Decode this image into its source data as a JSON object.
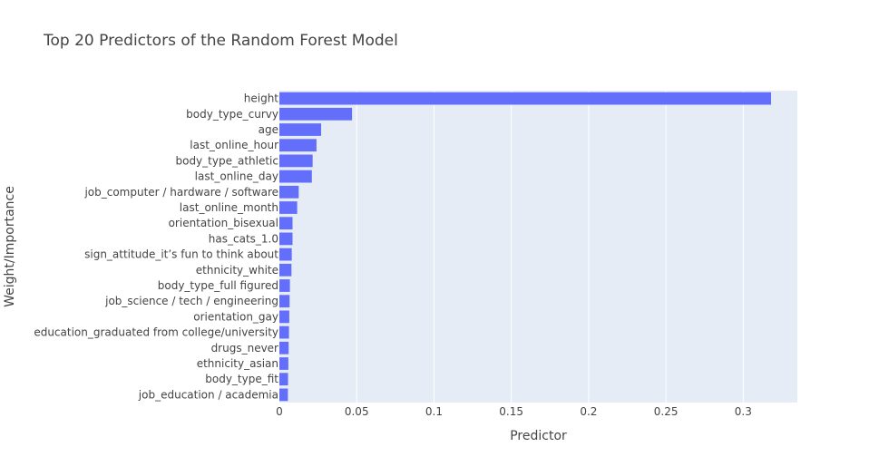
{
  "chart_data": {
    "type": "bar",
    "orientation": "horizontal",
    "title": "Top 20 Predictors of the Random Forest Model",
    "xlabel": "Predictor",
    "ylabel": "Weight/Importance",
    "xlim": [
      0,
      0.335
    ],
    "xticks": [
      0,
      0.05,
      0.1,
      0.15,
      0.2,
      0.25,
      0.3
    ],
    "xtick_labels": [
      "0",
      "0.05",
      "0.1",
      "0.15",
      "0.2",
      "0.25",
      "0.3"
    ],
    "grid": true,
    "bar_color": "#636efa",
    "plot_bgcolor": "#e5ecf6",
    "categories": [
      "height",
      "body_type_curvy",
      "age",
      "last_online_hour",
      "body_type_athletic",
      "last_online_day",
      "job_computer / hardware / software",
      "last_online_month",
      "orientation_bisexual",
      "has_cats_1.0",
      "sign_attitude_it’s fun to think about",
      "ethnicity_white",
      "body_type_full figured",
      "job_science / tech / engineering",
      "orientation_gay",
      "education_graduated from college/university",
      "drugs_never",
      "ethnicity_asian",
      "body_type_fit",
      "job_education / academia"
    ],
    "values": [
      0.318,
      0.047,
      0.027,
      0.024,
      0.0215,
      0.021,
      0.0125,
      0.0115,
      0.0085,
      0.0085,
      0.008,
      0.0078,
      0.0068,
      0.0066,
      0.0064,
      0.0062,
      0.006,
      0.0058,
      0.0056,
      0.0055
    ]
  }
}
